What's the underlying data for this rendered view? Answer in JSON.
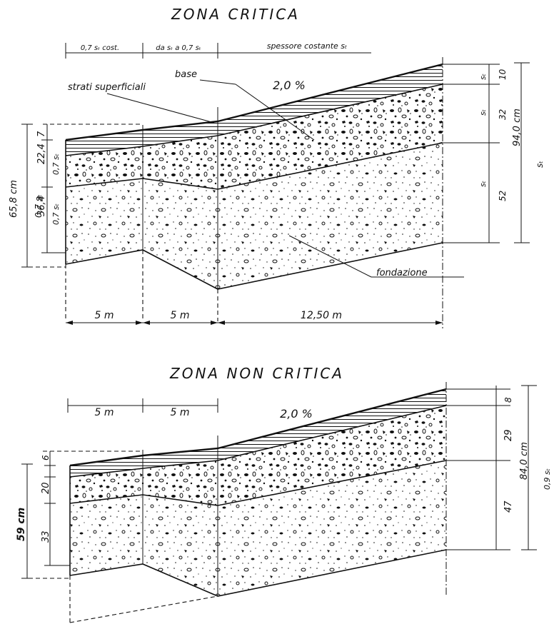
{
  "top": {
    "title": "ZONA CRITICA",
    "segments": [
      "0,7 sₜ cost.",
      "da sₜ a 0,7 sₜ",
      "spessore costante sₜ"
    ],
    "label_superficiali": "strati superficiali",
    "label_base": "base",
    "label_fondazione": "fondazione",
    "slope": "2,0 %",
    "left_total": "65,8 cm",
    "left_total_sub": "0,7 sₜ",
    "left_upper": "22,4",
    "left_upper_sub": "0,7 sₜ",
    "left_upper_top": "7",
    "left_lower": "36,4",
    "left_lower_sub": "0,7 sₜ",
    "right_layers": [
      "10",
      "32",
      "52"
    ],
    "right_layer_subs": [
      "sₜ",
      "sₜ",
      "sₜ"
    ],
    "right_total": "94,0 cm",
    "right_total_sub": "sₜ",
    "dims": [
      "5 m",
      "5 m",
      "12,50 m"
    ]
  },
  "bottom": {
    "title": "ZONA NON CRITICA",
    "dims": [
      "5 m",
      "5 m"
    ],
    "slope": "2,0 %",
    "left_layers": [
      "6",
      "20",
      "33"
    ],
    "left_total": "59 cm",
    "right_layers": [
      "8",
      "29",
      "47"
    ],
    "right_total": "84,0 cm",
    "right_total_sub": "0,9 sₜ"
  }
}
